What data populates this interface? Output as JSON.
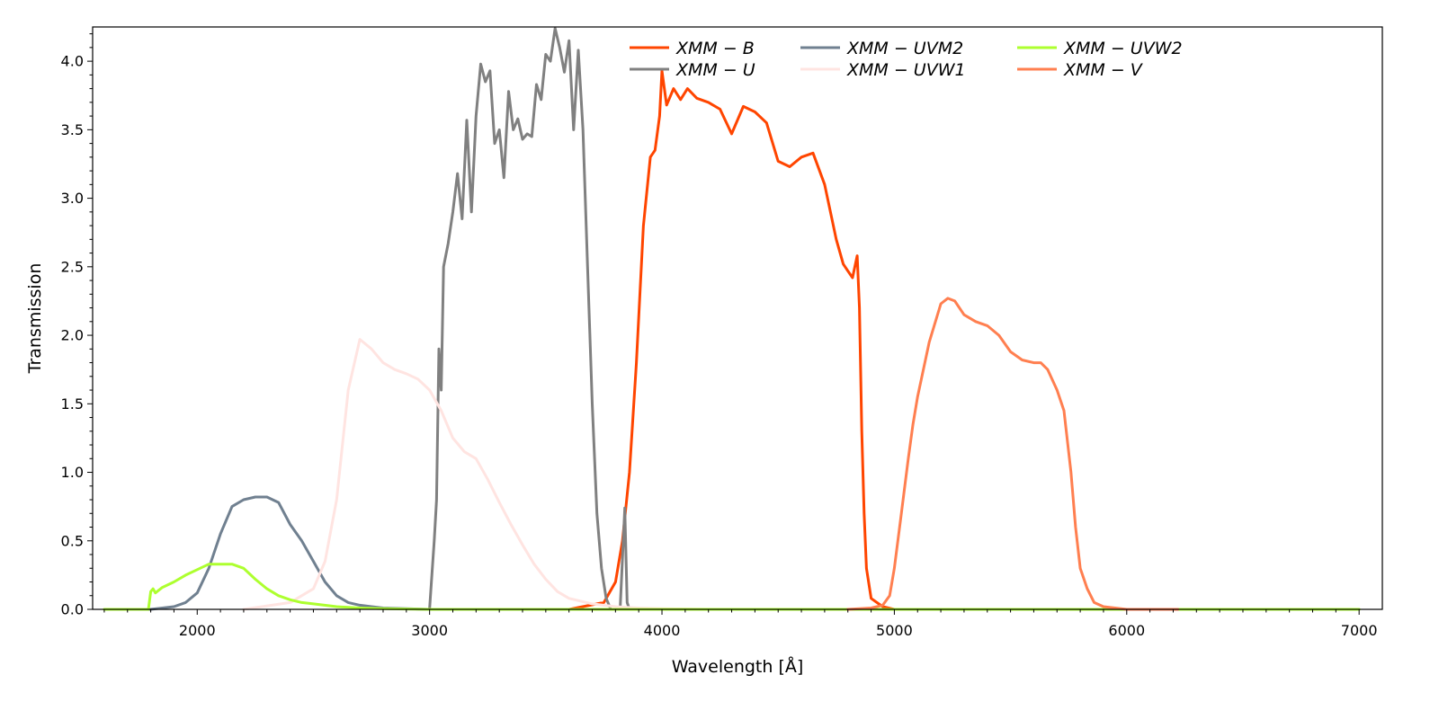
{
  "chart_data": {
    "type": "line",
    "title": "",
    "xlabel": "Wavelength [Å]",
    "ylabel": "Transmission",
    "xlim": [
      1550,
      7100
    ],
    "ylim": [
      0,
      4.25
    ],
    "xticks": [
      2000,
      3000,
      4000,
      5000,
      6000,
      7000
    ],
    "xtick_labels": [
      "2000",
      "3000",
      "4000",
      "5000",
      "6000",
      "7000"
    ],
    "yticks": [
      0.0,
      0.5,
      1.0,
      1.5,
      2.0,
      2.5,
      3.0,
      3.5,
      4.0
    ],
    "ytick_labels": [
      "0.0",
      "0.5",
      "1.0",
      "1.5",
      "2.0",
      "2.5",
      "3.0",
      "3.5",
      "4.0"
    ],
    "grid": false,
    "legend_position": "top-right",
    "series": [
      {
        "name": "XMM − B",
        "color": "#ff4500",
        "x": [
          3600,
          3750,
          3800,
          3830,
          3860,
          3890,
          3920,
          3950,
          3970,
          3990,
          4000,
          4020,
          4050,
          4080,
          4110,
          4150,
          4200,
          4250,
          4300,
          4350,
          4400,
          4450,
          4500,
          4550,
          4600,
          4650,
          4700,
          4750,
          4780,
          4800,
          4820,
          4840,
          4850,
          4860,
          4870,
          4880,
          4900,
          4950,
          5000
        ],
        "y": [
          0.0,
          0.05,
          0.2,
          0.5,
          1.0,
          1.8,
          2.8,
          3.3,
          3.35,
          3.6,
          3.93,
          3.68,
          3.8,
          3.72,
          3.8,
          3.73,
          3.7,
          3.65,
          3.47,
          3.67,
          3.63,
          3.55,
          3.27,
          3.23,
          3.3,
          3.33,
          3.1,
          2.7,
          2.52,
          2.47,
          2.42,
          2.58,
          2.2,
          1.3,
          0.7,
          0.3,
          0.08,
          0.02,
          0.0
        ]
      },
      {
        "name": "XMM − U",
        "color": "#808080",
        "x": [
          3000,
          3020,
          3030,
          3040,
          3050,
          3060,
          3080,
          3100,
          3120,
          3140,
          3160,
          3180,
          3200,
          3220,
          3240,
          3260,
          3280,
          3300,
          3320,
          3340,
          3360,
          3380,
          3400,
          3420,
          3440,
          3460,
          3480,
          3500,
          3520,
          3540,
          3560,
          3580,
          3600,
          3620,
          3640,
          3660,
          3680,
          3700,
          3720,
          3740,
          3760,
          3780,
          3800,
          3820,
          3840,
          3850,
          3860,
          3870,
          3880,
          3900,
          3950,
          4000,
          4700,
          4730,
          4745,
          4760,
          4780,
          4800
        ],
        "y": [
          0.0,
          0.5,
          0.8,
          1.9,
          1.6,
          2.5,
          2.67,
          2.9,
          3.18,
          2.85,
          3.57,
          2.9,
          3.6,
          3.98,
          3.85,
          3.93,
          3.4,
          3.5,
          3.15,
          3.78,
          3.5,
          3.58,
          3.43,
          3.47,
          3.45,
          3.83,
          3.72,
          4.05,
          4.0,
          4.24,
          4.1,
          3.92,
          4.15,
          3.5,
          4.08,
          3.5,
          2.5,
          1.5,
          0.7,
          0.3,
          0.08,
          0.0,
          0.0,
          0.0,
          0.74,
          0.05,
          0.0,
          0.0,
          0.0,
          0.0,
          0.0,
          0.0,
          0.0,
          0.0,
          0.0,
          0.0,
          0.0,
          0.0
        ]
      },
      {
        "name": "XMM − UVM2",
        "color": "#708090",
        "x": [
          1650,
          1750,
          1800,
          1900,
          1950,
          2000,
          2050,
          2100,
          2150,
          2200,
          2250,
          2300,
          2350,
          2400,
          2450,
          2500,
          2550,
          2600,
          2650,
          2700,
          2750,
          2800,
          2900,
          3000,
          3200
        ],
        "y": [
          0.0,
          0.0,
          0.0,
          0.02,
          0.05,
          0.12,
          0.3,
          0.55,
          0.75,
          0.8,
          0.82,
          0.82,
          0.78,
          0.62,
          0.5,
          0.35,
          0.2,
          0.1,
          0.05,
          0.03,
          0.02,
          0.01,
          0.005,
          0.0,
          0.0
        ]
      },
      {
        "name": "XMM − UVW1",
        "color": "#ffe4e1",
        "x": [
          2200,
          2400,
          2500,
          2550,
          2600,
          2650,
          2700,
          2750,
          2800,
          2850,
          2900,
          2950,
          3000,
          3050,
          3100,
          3150,
          3200,
          3250,
          3300,
          3350,
          3400,
          3450,
          3500,
          3550,
          3600,
          3700,
          3800,
          3900,
          4000,
          4200
        ],
        "y": [
          0.0,
          0.05,
          0.15,
          0.35,
          0.8,
          1.6,
          1.97,
          1.9,
          1.8,
          1.75,
          1.72,
          1.68,
          1.6,
          1.45,
          1.25,
          1.15,
          1.1,
          0.95,
          0.78,
          0.62,
          0.47,
          0.33,
          0.22,
          0.13,
          0.08,
          0.04,
          0.02,
          0.01,
          0.005,
          0.0
        ]
      },
      {
        "name": "XMM − UVW2",
        "color": "#adff2f",
        "x": [
          1600,
          1750,
          1790,
          1800,
          1810,
          1820,
          1850,
          1900,
          1950,
          2000,
          2050,
          2100,
          2150,
          2200,
          2250,
          2300,
          2350,
          2400,
          2450,
          2500,
          2600,
          2700,
          2800,
          3000,
          3500,
          4000,
          5000,
          6000,
          7000
        ],
        "y": [
          0.0,
          0.0,
          0.0,
          0.13,
          0.15,
          0.12,
          0.16,
          0.2,
          0.25,
          0.29,
          0.33,
          0.33,
          0.33,
          0.3,
          0.22,
          0.15,
          0.1,
          0.07,
          0.05,
          0.04,
          0.02,
          0.01,
          0.005,
          0.0,
          0.0,
          0.0,
          0.0,
          0.0,
          0.0
        ]
      },
      {
        "name": "XMM − V",
        "color": "#ff7f50",
        "x": [
          4800,
          4900,
          4950,
          4980,
          5000,
          5030,
          5060,
          5080,
          5100,
          5150,
          5200,
          5230,
          5260,
          5300,
          5350,
          5400,
          5450,
          5500,
          5550,
          5600,
          5630,
          5660,
          5700,
          5730,
          5760,
          5780,
          5800,
          5830,
          5860,
          5900,
          5950,
          6000,
          6100,
          6220
        ],
        "y": [
          0.0,
          0.01,
          0.03,
          0.1,
          0.3,
          0.7,
          1.1,
          1.35,
          1.55,
          1.95,
          2.23,
          2.27,
          2.25,
          2.15,
          2.1,
          2.07,
          2.0,
          1.88,
          1.82,
          1.8,
          1.8,
          1.75,
          1.6,
          1.45,
          1.0,
          0.6,
          0.3,
          0.15,
          0.05,
          0.02,
          0.01,
          0.0,
          0.0,
          0.0
        ]
      }
    ]
  }
}
